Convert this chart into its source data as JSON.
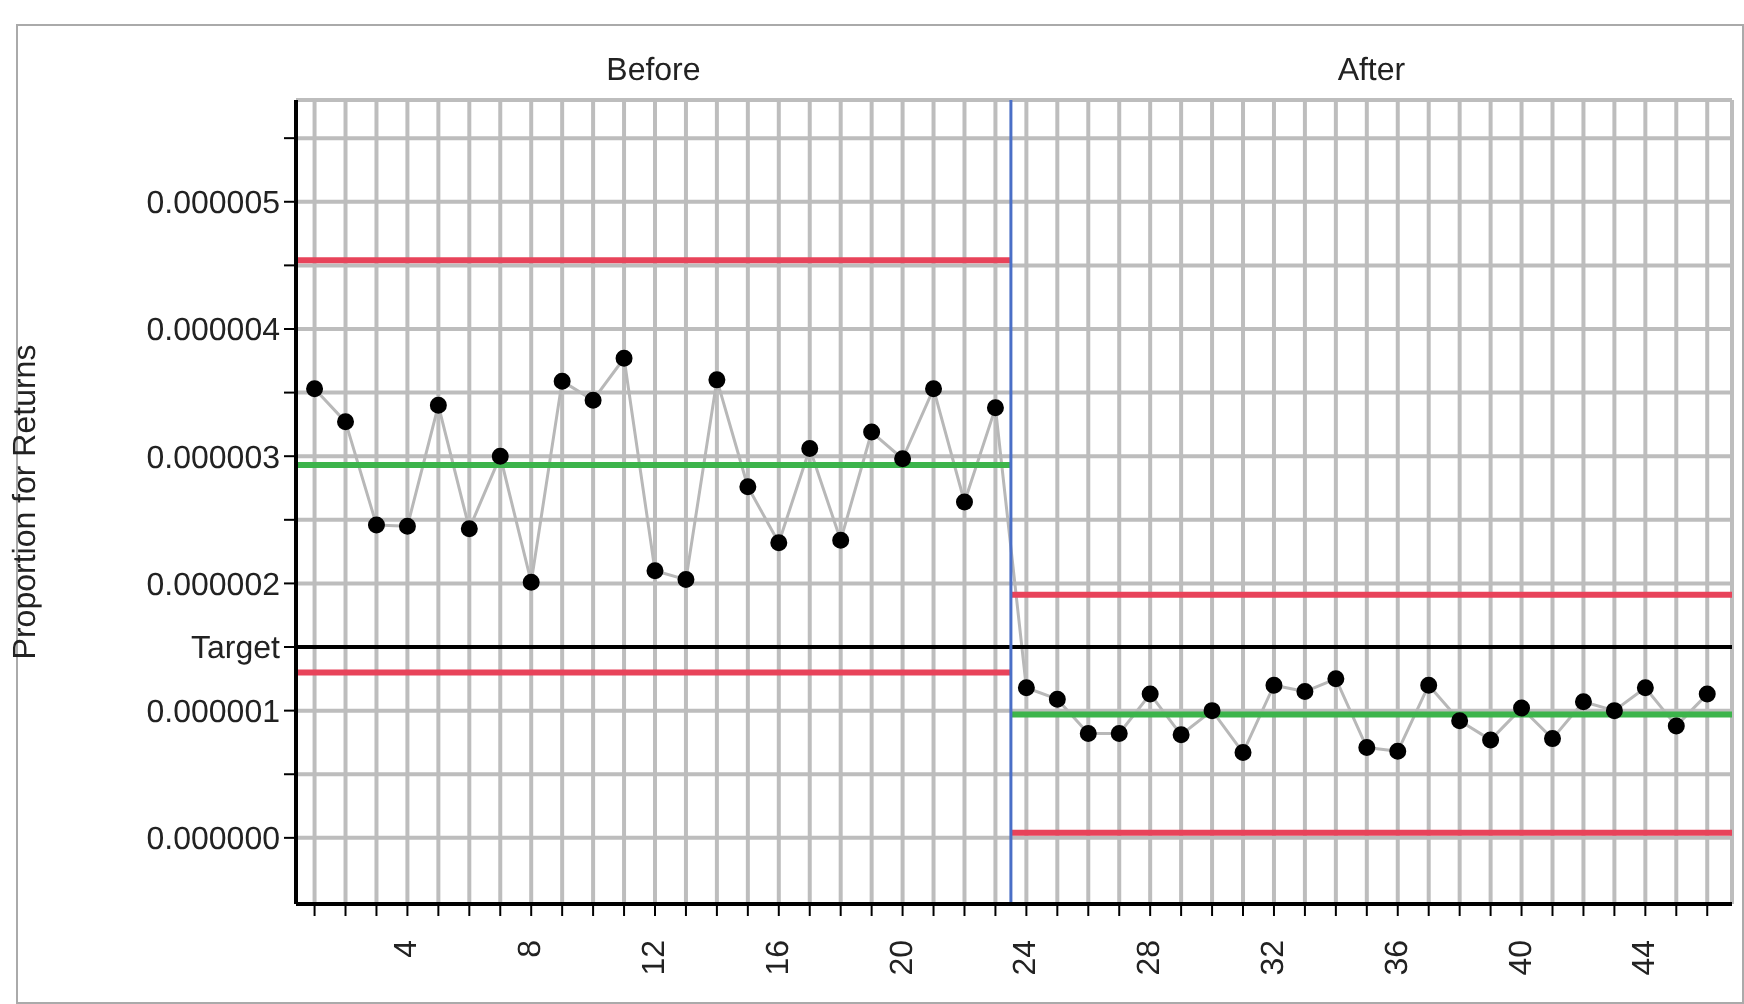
{
  "chart_data": {
    "type": "line",
    "ylabel": "Proportion for Returns",
    "annotations": [
      "Before",
      "After"
    ],
    "x": [
      1,
      2,
      3,
      4,
      5,
      6,
      7,
      8,
      9,
      10,
      11,
      12,
      13,
      14,
      15,
      16,
      17,
      18,
      19,
      20,
      21,
      22,
      23,
      24,
      25,
      26,
      27,
      28,
      29,
      30,
      31,
      32,
      33,
      34,
      35,
      36,
      37,
      38,
      39,
      40,
      41,
      42,
      43,
      44,
      45,
      46
    ],
    "series": [
      {
        "color": "#000000",
        "marker": "circle",
        "values": [
          3.53e-06,
          3.27e-06,
          2.46e-06,
          2.45e-06,
          3.4e-06,
          2.43e-06,
          3e-06,
          2.01e-06,
          3.59e-06,
          3.44e-06,
          3.77e-06,
          2.1e-06,
          2.03e-06,
          3.6e-06,
          2.76e-06,
          2.32e-06,
          3.06e-06,
          2.34e-06,
          3.19e-06,
          2.98e-06,
          3.53e-06,
          2.64e-06,
          3.38e-06,
          1.18e-06,
          1.09e-06,
          8.2e-07,
          8.2e-07,
          1.13e-06,
          8.1e-07,
          1e-06,
          6.7e-07,
          1.2e-06,
          1.15e-06,
          1.25e-06,
          7.1e-07,
          6.8e-07,
          1.2e-06,
          9.2e-07,
          7.7e-07,
          1.02e-06,
          7.8e-07,
          1.07e-06,
          1e-06,
          1.18e-06,
          8.8e-07,
          1.13e-06
        ]
      },
      {
        "type": "line",
        "color": "#e8435a",
        "marker": "none",
        "x": [
          0.4,
          23.5
        ],
        "values": [
          4.54e-06,
          4.54e-06
        ]
      },
      {
        "type": "line",
        "color": "#3cb44b",
        "marker": "none",
        "x": [
          0.4,
          23.5
        ],
        "values": [
          2.93e-06,
          2.93e-06
        ]
      },
      {
        "type": "line",
        "color": "#e8435a",
        "marker": "none",
        "x": [
          0.4,
          23.5
        ],
        "values": [
          1.3e-06,
          1.3e-06
        ]
      },
      {
        "type": "line",
        "color": "#e8435a",
        "marker": "none",
        "x": [
          23.5,
          46.8
        ],
        "values": [
          1.91e-06,
          1.91e-06
        ]
      },
      {
        "type": "line",
        "color": "#3cb44b",
        "marker": "none",
        "x": [
          23.5,
          46.8
        ],
        "values": [
          9.7e-07,
          9.7e-07
        ]
      },
      {
        "type": "line",
        "color": "#e8435a",
        "marker": "none",
        "x": [
          23.5,
          46.8
        ],
        "values": [
          4e-08,
          4e-08
        ]
      }
    ],
    "ref_lines": [
      {
        "axis": "y",
        "value": 1.5e-06,
        "label": "Target",
        "color": "#000000"
      },
      {
        "axis": "x",
        "value": 23.5,
        "label": null,
        "color": "#4a6fc7"
      }
    ],
    "xlim": [
      0.4,
      46.8
    ],
    "xticks": [
      {
        "value": 1,
        "label": null
      },
      {
        "value": 2,
        "label": null
      },
      {
        "value": 3,
        "label": null
      },
      4,
      {
        "value": 5,
        "label": null
      },
      {
        "value": 6,
        "label": null
      },
      {
        "value": 7,
        "label": null
      },
      8,
      {
        "value": 9,
        "label": null
      },
      {
        "value": 10,
        "label": null
      },
      {
        "value": 11,
        "label": null
      },
      12,
      {
        "value": 13,
        "label": null
      },
      {
        "value": 14,
        "label": null
      },
      {
        "value": 15,
        "label": null
      },
      16,
      {
        "value": 17,
        "label": null
      },
      {
        "value": 18,
        "label": null
      },
      {
        "value": 19,
        "label": null
      },
      20,
      {
        "value": 21,
        "label": null
      },
      {
        "value": 22,
        "label": null
      },
      {
        "value": 23,
        "label": null
      },
      24,
      {
        "value": 25,
        "label": null
      },
      {
        "value": 26,
        "label": null
      },
      {
        "value": 27,
        "label": null
      },
      28,
      {
        "value": 29,
        "label": null
      },
      {
        "value": 30,
        "label": null
      },
      {
        "value": 31,
        "label": null
      },
      32,
      {
        "value": 33,
        "label": null
      },
      {
        "value": 34,
        "label": null
      },
      {
        "value": 35,
        "label": null
      },
      36,
      {
        "value": 37,
        "label": null
      },
      {
        "value": 38,
        "label": null
      },
      {
        "value": 39,
        "label": null
      },
      40,
      {
        "value": 41,
        "label": null
      },
      {
        "value": 42,
        "label": null
      },
      {
        "value": 43,
        "label": null
      },
      44,
      {
        "value": 45,
        "label": null
      },
      {
        "value": 46,
        "label": null
      }
    ],
    "ylim": [
      -5.2e-07,
      5.8e-06
    ],
    "yticks": [
      {
        "value": 0,
        "label": "0.000000"
      },
      {
        "value": 5e-07,
        "label": null
      },
      {
        "value": 1e-06,
        "label": "0.000001"
      },
      {
        "value": 1.5e-06,
        "label": null
      },
      {
        "value": 2e-06,
        "label": "0.000002"
      },
      {
        "value": 2.5e-06,
        "label": null
      },
      {
        "value": 3e-06,
        "label": "0.000003"
      },
      {
        "value": 3.5e-06,
        "label": null
      },
      {
        "value": 4e-06,
        "label": "0.000004"
      },
      {
        "value": 4.5e-06,
        "label": null
      },
      {
        "value": 5e-06,
        "label": "0.000005"
      },
      {
        "value": 5.5e-06,
        "label": null
      }
    ],
    "grid": true,
    "line_style": "solid"
  }
}
